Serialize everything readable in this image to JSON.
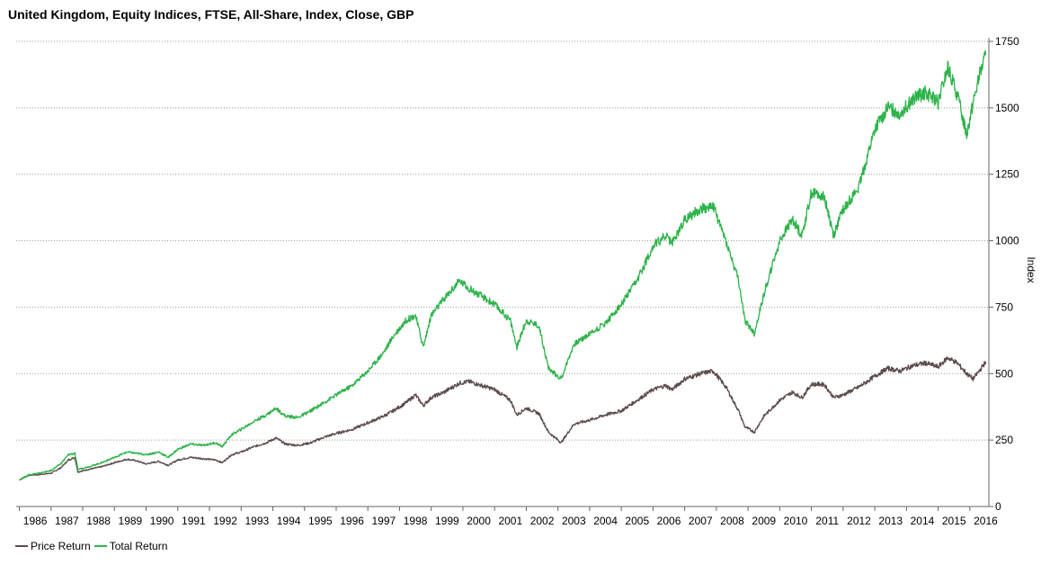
{
  "chart_data": {
    "type": "line",
    "title": "United Kingdom, Equity Indices, FTSE, All-Share, Index, Close, GBP",
    "ylabel": "Index",
    "xlabel": "",
    "ylim": [
      0,
      1750
    ],
    "yticks": [
      0,
      250,
      500,
      750,
      1000,
      1250,
      1500,
      1750
    ],
    "xticks": [
      "1986",
      "1987",
      "1988",
      "1989",
      "1990",
      "1991",
      "1992",
      "1993",
      "1994",
      "1995",
      "1996",
      "1997",
      "1998",
      "1999",
      "2000",
      "2001",
      "2002",
      "2003",
      "2004",
      "2005",
      "2006",
      "2007",
      "2008",
      "2009",
      "2010",
      "2011",
      "2012",
      "2013",
      "2014",
      "2015",
      "2016"
    ],
    "xlim": [
      1985.9,
      2016.6
    ],
    "grid": "horizontal dotted",
    "legend_position": "bottom-left",
    "series": [
      {
        "name": "Price Return",
        "color": "#5c4a4a",
        "x": [
          1986.0,
          1986.3,
          1986.6,
          1987.0,
          1987.3,
          1987.55,
          1987.75,
          1987.85,
          1988.2,
          1988.6,
          1989.0,
          1989.4,
          1989.7,
          1990.0,
          1990.4,
          1990.7,
          1991.0,
          1991.4,
          1991.8,
          1992.2,
          1992.4,
          1992.7,
          1993.0,
          1993.4,
          1993.8,
          1994.1,
          1994.4,
          1994.8,
          1995.2,
          1995.6,
          1996.0,
          1996.5,
          1997.0,
          1997.5,
          1997.8,
          1998.2,
          1998.5,
          1998.75,
          1999.0,
          1999.4,
          1999.9,
          2000.2,
          2000.6,
          2001.0,
          2001.5,
          2001.7,
          2002.0,
          2002.4,
          2002.7,
          2003.1,
          2003.5,
          2004.0,
          2004.5,
          2005.0,
          2005.5,
          2006.0,
          2006.4,
          2006.6,
          2007.0,
          2007.5,
          2007.9,
          2008.3,
          2008.7,
          2008.9,
          2009.2,
          2009.5,
          2010.0,
          2010.4,
          2010.7,
          2011.0,
          2011.4,
          2011.7,
          2012.0,
          2012.5,
          2013.0,
          2013.4,
          2013.8,
          2014.2,
          2014.6,
          2015.0,
          2015.3,
          2015.6,
          2015.9,
          2016.1,
          2016.3,
          2016.5
        ],
        "values": [
          100,
          118,
          120,
          125,
          145,
          175,
          185,
          130,
          140,
          150,
          165,
          178,
          172,
          160,
          170,
          155,
          175,
          185,
          180,
          175,
          165,
          195,
          205,
          225,
          240,
          258,
          235,
          230,
          240,
          260,
          275,
          290,
          315,
          340,
          360,
          390,
          420,
          380,
          410,
          430,
          465,
          470,
          455,
          440,
          400,
          345,
          370,
          350,
          280,
          240,
          310,
          325,
          345,
          360,
          400,
          440,
          455,
          440,
          480,
          500,
          510,
          450,
          360,
          300,
          280,
          340,
          400,
          430,
          410,
          460,
          460,
          410,
          420,
          450,
          490,
          520,
          510,
          530,
          540,
          525,
          560,
          540,
          500,
          480,
          510,
          545
        ]
      },
      {
        "name": "Total Return",
        "color": "#2db34a",
        "x": [
          1986.0,
          1986.3,
          1986.6,
          1987.0,
          1987.3,
          1987.55,
          1987.75,
          1987.85,
          1988.2,
          1988.6,
          1989.0,
          1989.4,
          1989.7,
          1990.0,
          1990.4,
          1990.7,
          1991.0,
          1991.4,
          1991.8,
          1992.2,
          1992.4,
          1992.7,
          1993.0,
          1993.4,
          1993.8,
          1994.1,
          1994.4,
          1994.8,
          1995.2,
          1995.6,
          1996.0,
          1996.5,
          1997.0,
          1997.5,
          1997.8,
          1998.2,
          1998.5,
          1998.75,
          1999.0,
          1999.4,
          1999.9,
          2000.2,
          2000.6,
          2001.0,
          2001.5,
          2001.7,
          2002.0,
          2002.4,
          2002.7,
          2003.1,
          2003.5,
          2004.0,
          2004.5,
          2005.0,
          2005.5,
          2006.0,
          2006.4,
          2006.6,
          2007.0,
          2007.5,
          2007.9,
          2008.3,
          2008.7,
          2008.9,
          2009.2,
          2009.5,
          2010.0,
          2010.4,
          2010.7,
          2011.0,
          2011.4,
          2011.7,
          2012.0,
          2012.5,
          2013.0,
          2013.4,
          2013.8,
          2014.2,
          2014.6,
          2015.0,
          2015.3,
          2015.6,
          2015.9,
          2016.1,
          2016.3,
          2016.5
        ],
        "values": [
          100,
          120,
          125,
          135,
          160,
          195,
          200,
          140,
          150,
          165,
          185,
          205,
          200,
          195,
          205,
          185,
          215,
          235,
          230,
          240,
          225,
          270,
          290,
          320,
          345,
          370,
          340,
          335,
          360,
          390,
          420,
          455,
          510,
          580,
          640,
          700,
          720,
          600,
          720,
          780,
          850,
          820,
          790,
          760,
          700,
          600,
          700,
          680,
          520,
          480,
          610,
          650,
          690,
          760,
          850,
          980,
          1020,
          990,
          1080,
          1120,
          1130,
          1000,
          850,
          700,
          650,
          800,
          1000,
          1080,
          1020,
          1180,
          1170,
          1020,
          1120,
          1200,
          1420,
          1500,
          1480,
          1530,
          1560,
          1520,
          1650,
          1550,
          1400,
          1520,
          1620,
          1700
        ]
      }
    ]
  },
  "legend": {
    "items": [
      {
        "label": "Price Return",
        "color": "#5c4a4a"
      },
      {
        "label": "Total Return",
        "color": "#2db34a"
      }
    ]
  }
}
